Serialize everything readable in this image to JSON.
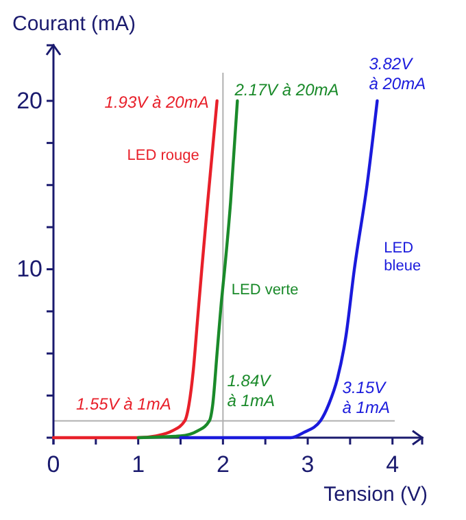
{
  "chart_data": {
    "type": "line",
    "xlabel": "Tension (V)",
    "ylabel": "Courant (mA)",
    "xlim": [
      0,
      4.35
    ],
    "ylim": [
      0,
      23.3
    ],
    "xticks": [
      0,
      {
        "value": 0.5,
        "label": null
      },
      1,
      {
        "value": 1.5,
        "label": null
      },
      2,
      {
        "value": 2.5,
        "label": null
      },
      3,
      {
        "value": 3.5,
        "label": null
      },
      4
    ],
    "yticks": [
      {
        "value": 2.5,
        "label": null
      },
      {
        "value": 5,
        "label": null
      },
      {
        "value": 7.5,
        "label": null
      },
      10,
      {
        "value": 12.5,
        "label": null
      },
      {
        "value": 15,
        "label": null
      },
      {
        "value": 17.5,
        "label": null
      },
      20
    ],
    "grid": false,
    "legend": false,
    "marker": "none",
    "line_style": "solid",
    "ref_lines": [
      {
        "axis": "y",
        "value": 1,
        "color": "#b0b0b0"
      },
      {
        "axis": "x",
        "value": 2,
        "color": "#b0b0b0"
      }
    ],
    "series": [
      {
        "name": "LED rouge",
        "color": "#e8202a",
        "x": [
          0,
          1.0,
          1.2,
          1.4,
          1.55,
          1.6,
          1.65,
          1.7,
          1.75,
          1.82,
          1.93
        ],
        "values": [
          0,
          0,
          0.1,
          0.4,
          1,
          2,
          4,
          7,
          10,
          14,
          20
        ]
      },
      {
        "name": "LED verte",
        "color": "#1a8a2a",
        "x": [
          1.0,
          1.5,
          1.7,
          1.84,
          1.88,
          1.93,
          1.98,
          2.02,
          2.09,
          2.17
        ],
        "values": [
          0,
          0.1,
          0.4,
          1,
          2,
          5,
          8,
          10,
          14,
          20
        ]
      },
      {
        "name": "LED bleue",
        "color": "#1a1adc",
        "x": [
          1.5,
          2.8,
          2.95,
          3.15,
          3.25,
          3.35,
          3.45,
          3.55,
          3.7,
          3.82
        ],
        "values": [
          0,
          0,
          0.3,
          1,
          2,
          3.5,
          6,
          10,
          15,
          20
        ]
      }
    ],
    "annotations": [
      {
        "text": "1.93V à 20mA",
        "x": 1.93,
        "y": 20
      },
      {
        "text": "2.17V à 20mA",
        "x": 2.17,
        "y": 20
      },
      {
        "text": "3.82V\nà 20mA",
        "x": 3.82,
        "y": 20
      },
      {
        "text": "1.55V à 1mA",
        "x": 1.55,
        "y": 1
      },
      {
        "text": "1.84V\nà 1mA",
        "x": 1.84,
        "y": 1
      },
      {
        "text": "3.15V\nà 1mA",
        "x": 3.15,
        "y": 1
      }
    ]
  }
}
